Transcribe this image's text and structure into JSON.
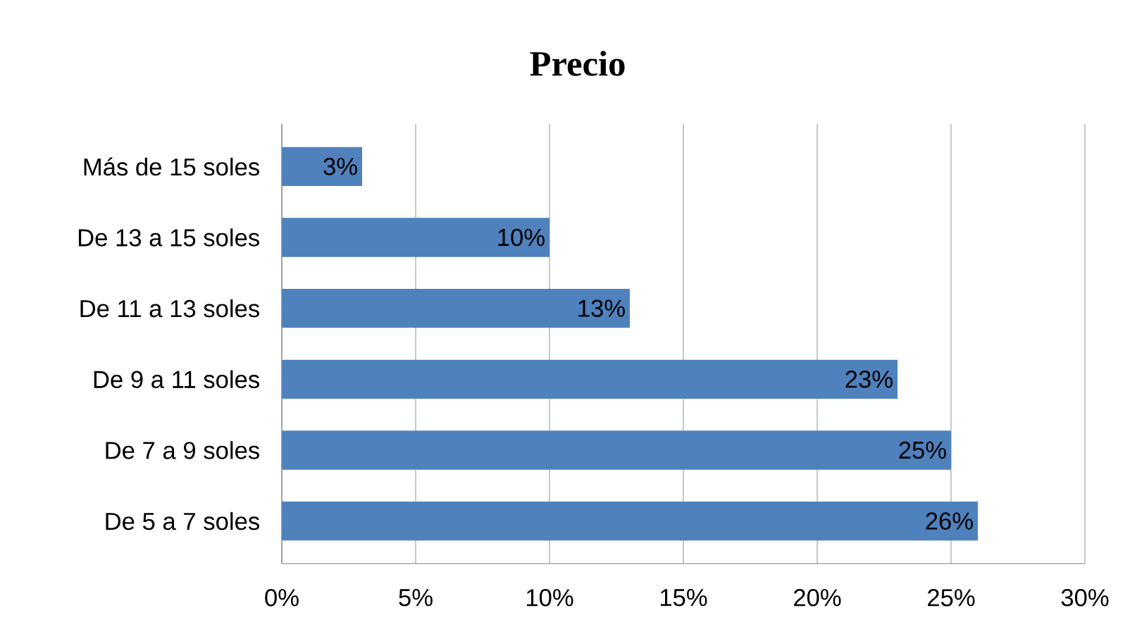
{
  "chart_data": {
    "type": "bar",
    "orientation": "horizontal",
    "title": "Precio",
    "categories": [
      "Más de 15 soles",
      "De 13 a 15 soles",
      "De 11 a 13 soles",
      "De 9 a 11 soles",
      "De 7 a 9 soles",
      "De 5 a 7 soles"
    ],
    "values": [
      3,
      10,
      13,
      23,
      25,
      26
    ],
    "value_labels": [
      "3%",
      "10%",
      "13%",
      "23%",
      "25%",
      "26%"
    ],
    "color": "#4f81bd",
    "xlim": [
      0,
      30
    ],
    "xticks": [
      {
        "value": 0,
        "label": "0%"
      },
      {
        "value": 5,
        "label": "5%"
      },
      {
        "value": 10,
        "label": "10%"
      },
      {
        "value": 15,
        "label": "15%"
      },
      {
        "value": 20,
        "label": "20%"
      },
      {
        "value": 25,
        "label": "25%"
      },
      {
        "value": 30,
        "label": "30%"
      }
    ],
    "grid": "x"
  }
}
